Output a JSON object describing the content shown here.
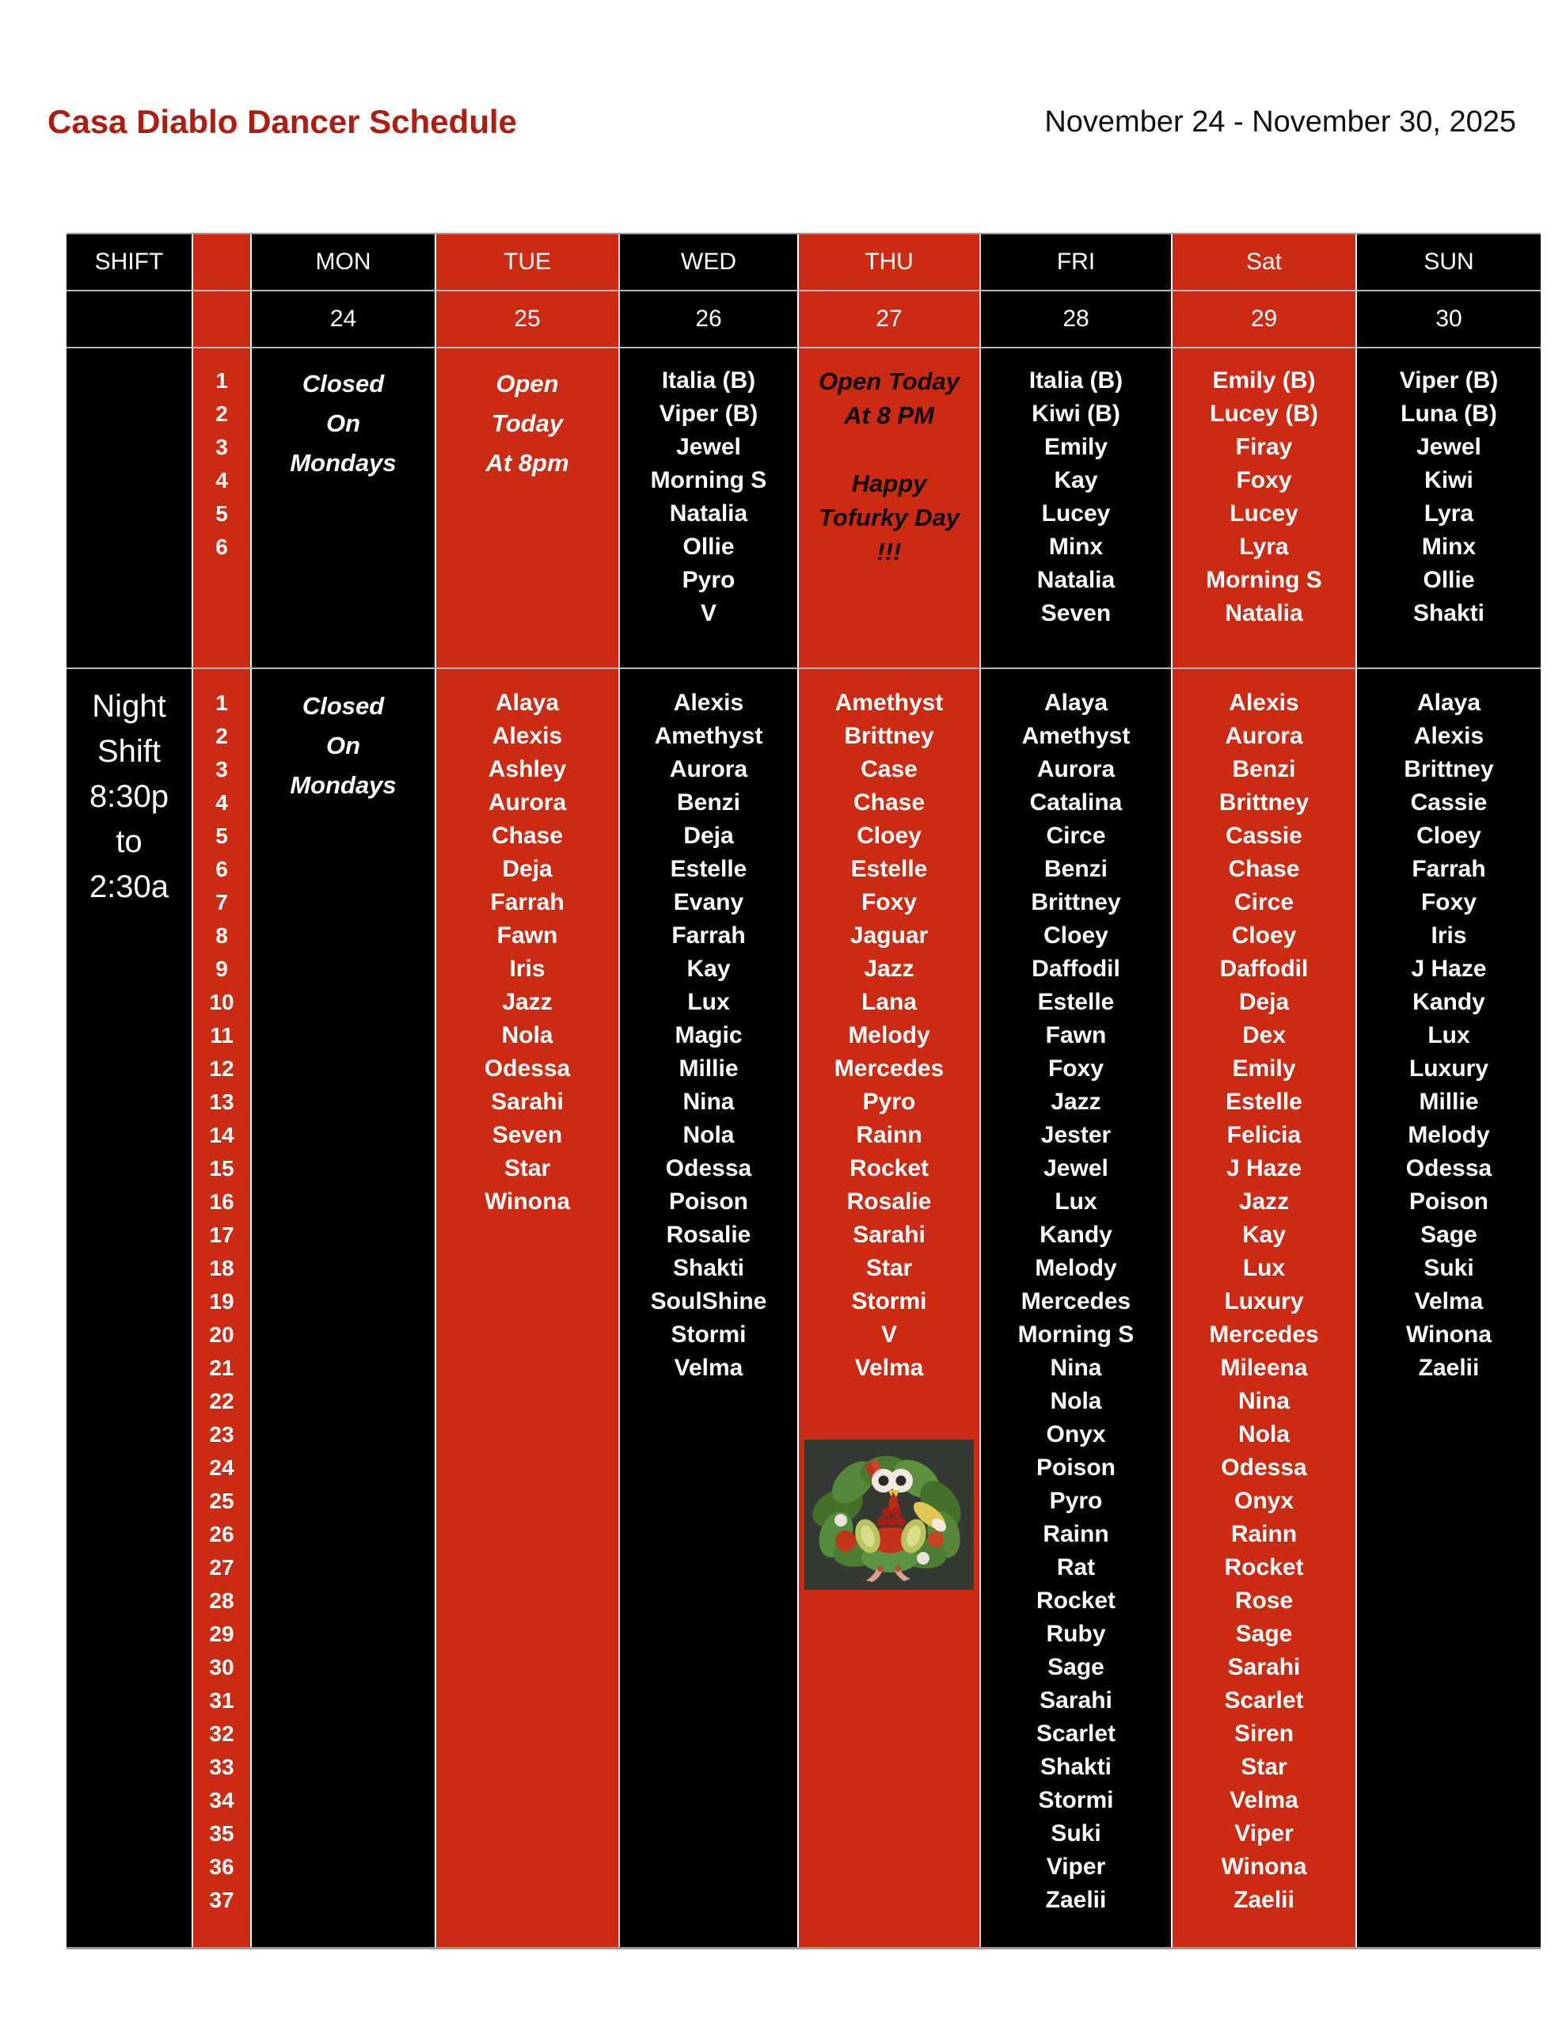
{
  "page": {
    "title": "Casa Diablo Dancer Schedule",
    "date_range": "November 24 - November 30, 2025"
  },
  "colors": {
    "column_red": "#cd2a13",
    "column_black": "#000000",
    "title_red": "#b01c10",
    "text_white": "#ffffff",
    "thu_message_text": "#0d0500"
  },
  "table": {
    "columns": [
      {
        "key": "shift",
        "header": "SHIFT",
        "date": ""
      },
      {
        "key": "num",
        "header": "",
        "date": ""
      },
      {
        "key": "mon",
        "header": "MON",
        "date": "24"
      },
      {
        "key": "tue",
        "header": "TUE",
        "date": "25"
      },
      {
        "key": "wed",
        "header": "WED",
        "date": "26"
      },
      {
        "key": "thu",
        "header": "THU",
        "date": "27"
      },
      {
        "key": "fri",
        "header": "FRI",
        "date": "28"
      },
      {
        "key": "sat",
        "header": "Sat",
        "date": "29"
      },
      {
        "key": "sun",
        "header": "SUN",
        "date": "30"
      }
    ],
    "day_section": {
      "shift_label": "",
      "numbers": [
        "1",
        "2",
        "3",
        "4",
        "5",
        "6"
      ],
      "mon_message": [
        "Closed",
        "On",
        "Mondays"
      ],
      "tue_message": [
        "Open",
        "Today",
        "At 8pm"
      ],
      "wed": [
        "Italia (B)",
        "Viper (B)",
        "Jewel",
        "Morning S",
        "Natalia",
        "Ollie",
        "Pyro",
        "V"
      ],
      "thu_message": [
        "Open Today",
        "At 8 PM",
        "",
        "Happy",
        "Tofurky Day",
        "!!!"
      ],
      "fri": [
        "Italia (B)",
        "Kiwi (B)",
        "Emily",
        "Kay",
        "Lucey",
        "Minx",
        "Natalia",
        "Seven"
      ],
      "sat": [
        "Emily (B)",
        "Lucey (B)",
        "Firay",
        "Foxy",
        "Lucey",
        "Lyra",
        "Morning S",
        "Natalia"
      ],
      "sun": [
        "Viper (B)",
        "Luna (B)",
        "Jewel",
        "Kiwi",
        "Lyra",
        "Minx",
        "Ollie",
        "Shakti"
      ]
    },
    "night_section": {
      "shift_label": [
        "Night",
        "Shift",
        "8:30p",
        "to",
        "2:30a"
      ],
      "numbers": [
        "1",
        "2",
        "3",
        "4",
        "5",
        "6",
        "7",
        "8",
        "9",
        "10",
        "11",
        "12",
        "13",
        "14",
        "15",
        "16",
        "17",
        "18",
        "19",
        "20",
        "21",
        "22",
        "23",
        "24",
        "25",
        "26",
        "27",
        "28",
        "29",
        "30",
        "31",
        "32",
        "33",
        "34",
        "35",
        "36",
        "37"
      ],
      "mon_message": [
        "Closed",
        "On",
        "Mondays"
      ],
      "tue": [
        "Alaya",
        "Alexis",
        "Ashley",
        "Aurora",
        "Chase",
        "Deja",
        "Farrah",
        "Fawn",
        "Iris",
        "Jazz",
        "Nola",
        "Odessa",
        "Sarahi",
        "Seven",
        "Star",
        "Winona"
      ],
      "wed": [
        "Alexis",
        "Amethyst",
        "Aurora",
        "Benzi",
        "Deja",
        "Estelle",
        "Evany",
        "Farrah",
        "Kay",
        "Lux",
        "Magic",
        "Millie",
        "Nina",
        "Nola",
        "Odessa",
        "Poison",
        "Rosalie",
        "Shakti",
        "SoulShine",
        "Stormi",
        "Velma"
      ],
      "thu": [
        "Amethyst",
        "Brittney",
        "Case",
        "Chase",
        "Cloey",
        "Estelle",
        "Foxy",
        "Jaguar",
        "Jazz",
        "Lana",
        "Melody",
        "Mercedes",
        "Pyro",
        "Rainn",
        "Rocket",
        "Rosalie",
        "Sarahi",
        "Star",
        "Stormi",
        "V",
        "Velma"
      ],
      "fri": [
        "Alaya",
        "Amethyst",
        "Aurora",
        "Catalina",
        "Circe",
        "Benzi",
        "Brittney",
        "Cloey",
        "Daffodil",
        "Estelle",
        "Fawn",
        "Foxy",
        "Jazz",
        "Jester",
        "Jewel",
        "Lux",
        "Kandy",
        "Melody",
        "Mercedes",
        "Morning S",
        "Nina",
        "Nola",
        "Onyx",
        "Poison",
        "Pyro",
        "Rainn",
        "Rat",
        "Rocket",
        "Ruby",
        "Sage",
        "Sarahi",
        "Scarlet",
        "Shakti",
        "Stormi",
        "Suki",
        "Viper",
        "Zaelii"
      ],
      "sat": [
        "Alexis",
        "Aurora",
        "Benzi",
        "Brittney",
        "Cassie",
        "Chase",
        "Circe",
        "Cloey",
        "Daffodil",
        "Deja",
        "Dex",
        "Emily",
        "Estelle",
        "Felicia",
        "J Haze",
        "Jazz",
        "Kay",
        "Lux",
        "Luxury",
        "Mercedes",
        "Mileena",
        "Nina",
        "Nola",
        "Odessa",
        "Onyx",
        "Rainn",
        "Rocket",
        "Rose",
        "Sage",
        "Sarahi",
        "Scarlet",
        "Siren",
        "Star",
        "Velma",
        "Viper",
        "Winona",
        "Zaelii"
      ],
      "sun": [
        "Alaya",
        "Alexis",
        "Brittney",
        "Cassie",
        "Cloey",
        "Farrah",
        "Foxy",
        "Iris",
        "J Haze",
        "Kandy",
        "Lux",
        "Luxury",
        "Millie",
        "Melody",
        "Odessa",
        "Poison",
        "Sage",
        "Suki",
        "Velma",
        "Winona",
        "Zaelii"
      ],
      "thu_image": "veggie-turkey"
    }
  }
}
